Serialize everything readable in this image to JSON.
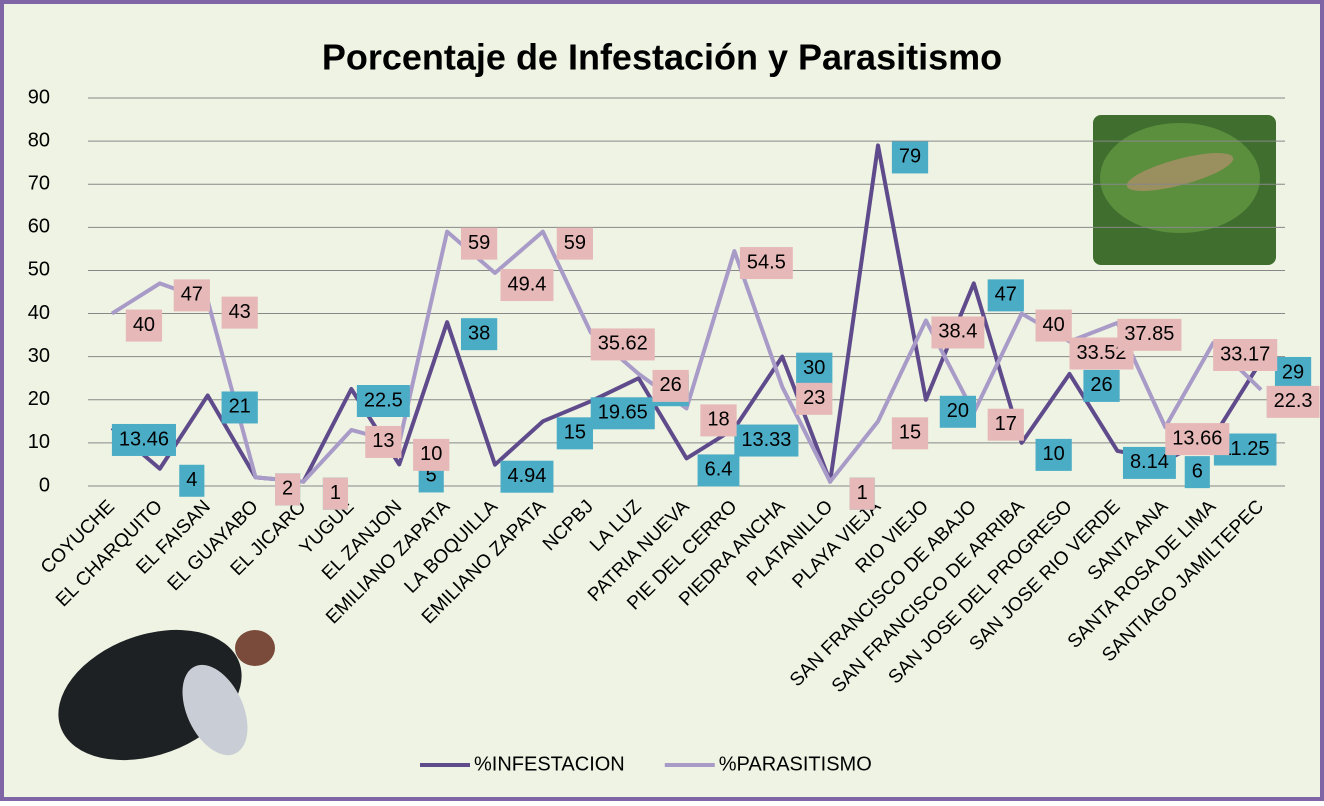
{
  "chart_data": {
    "type": "line",
    "title": "Porcentaje de Infestación y Parasitismo",
    "categories": [
      "COYUCHE",
      "EL CHARQUITO",
      "EL FAISAN",
      "EL GUAYABO",
      "EL JICARO",
      "YUGUE",
      "EL ZANJON",
      "EMILIANO ZAPATA",
      "LA BOQUILLA",
      "EMILIANO ZAPATA",
      "NCPBJ",
      "LA LUZ",
      "PATRIA NUEVA",
      "PIE DEL CERRO",
      "PIEDRA ANCHA",
      "PLATANILLO",
      "PLAYA VIEJA",
      "RIO VIEJO",
      "SAN FRANCISCO DE ABAJO",
      "SAN FRANCISCO DE ARRIBA",
      "SAN JOSE DEL PROGRESO",
      "SAN JOSE RIO VERDE",
      "SANTA ANA",
      "SANTA ROSA DE LIMA",
      "SANTIAGO JAMILTEPEC"
    ],
    "series": [
      {
        "name": "%INFESTACION",
        "color": "#5f4b8b",
        "label_color": "#4bacc6",
        "values": [
          13.46,
          4,
          21,
          2,
          1,
          22.5,
          5,
          38,
          4.94,
          15,
          19.65,
          25,
          6.4,
          13.33,
          30,
          1,
          79,
          20,
          47,
          10,
          26,
          8.14,
          6,
          11.25,
          29
        ]
      },
      {
        "name": "%PARASITISMO",
        "color": "#a99bc8",
        "label_color": "#e6b9b8",
        "values": [
          40,
          47,
          43,
          2,
          1,
          13,
          10,
          59,
          49.4,
          59,
          35.62,
          26,
          18,
          54.5,
          23,
          1,
          15,
          38.4,
          17,
          40,
          33.52,
          37.85,
          13.66,
          33.17,
          22.3
        ]
      }
    ],
    "ylim": [
      0,
      90
    ],
    "yticks": [
      0,
      10,
      20,
      30,
      40,
      50,
      60,
      70,
      80,
      90
    ],
    "grid": true,
    "legend": "bottom"
  }
}
